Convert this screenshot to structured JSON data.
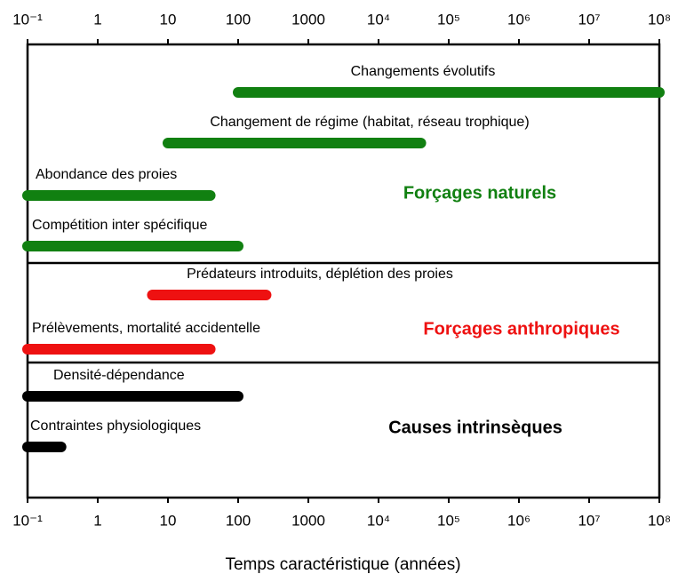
{
  "chart_data": {
    "type": "range_bar",
    "xlabel": "Temps caractéristique (années)",
    "xscale": "log",
    "xlim": [
      0.1,
      100000000
    ],
    "xticks": [
      {
        "value": 0.1,
        "label": "10⁻¹"
      },
      1,
      10,
      100,
      1000,
      {
        "value": 10000,
        "label": "10⁴"
      },
      {
        "value": 100000,
        "label": "10⁵"
      },
      {
        "value": 1000000,
        "label": "10⁶"
      },
      {
        "value": 10000000,
        "label": "10⁷"
      },
      {
        "value": 100000000,
        "label": "10⁸"
      }
    ],
    "groups": [
      {
        "name": "Forçages naturels",
        "color": "#118011",
        "bars": [
          {
            "label": "Changements évolutifs",
            "start": 100,
            "end": 100000000
          },
          {
            "label": "Changement de régime (habitat, réseau trophique)",
            "start": 10,
            "end": 40000
          },
          {
            "label": "Abondance des proies",
            "start": 0.1,
            "end": 40
          },
          {
            "label": "Compétition inter spécifique",
            "start": 0.1,
            "end": 100
          }
        ]
      },
      {
        "name": "Forçages anthropiques",
        "color": "#ee1111",
        "bars": [
          {
            "label": "Prédateurs introduits, déplétion des proies",
            "start": 6,
            "end": 250
          },
          {
            "label": "Prélèvements, mortalité accidentelle",
            "start": 0.1,
            "end": 40
          }
        ]
      },
      {
        "name": "Causes intrinsèques",
        "color": "#000000",
        "bars": [
          {
            "label": "Densité-dépendance",
            "start": 0.1,
            "end": 100
          },
          {
            "label": "Contraintes physiologiques",
            "start": 0.1,
            "end": 0.3
          }
        ]
      }
    ]
  }
}
